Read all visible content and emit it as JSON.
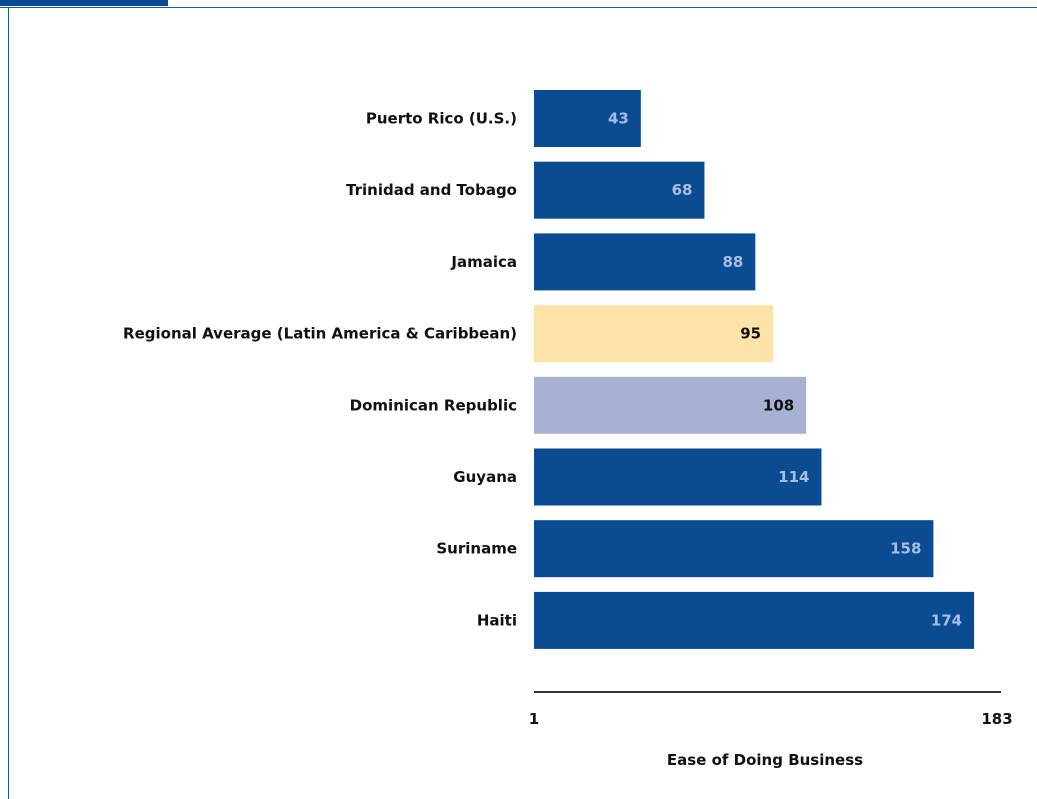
{
  "chart_data": {
    "type": "bar",
    "orientation": "horizontal",
    "categories": [
      "Puerto Rico (U.S.)",
      "Trinidad and Tobago",
      "Jamaica",
      "Regional Average (Latin America & Caribbean)",
      "Dominican Republic",
      "Guyana",
      "Suriname",
      "Haiti"
    ],
    "values": [
      43,
      68,
      88,
      95,
      108,
      114,
      158,
      174
    ],
    "bar_colors": [
      "#0b4b92",
      "#0b4b92",
      "#0b4b92",
      "#fde3a7",
      "#a6b1d4",
      "#0b4b92",
      "#0b4b92",
      "#0b4b92"
    ],
    "value_label_colors": [
      "#a9bde0",
      "#a9bde0",
      "#a9bde0",
      "#111111",
      "#111111",
      "#a9bde0",
      "#a9bde0",
      "#a9bde0"
    ],
    "xlabel": "Ease of Doing Business",
    "xlim": [
      1,
      183
    ],
    "x_ticks": [
      "1",
      "183"
    ],
    "grid": false,
    "legend": "none"
  },
  "colors": {
    "primary": "#0b4b92",
    "regional_average": "#fde3a7",
    "highlight_country": "#a6b1d4",
    "frame": "#1f5aa0"
  }
}
